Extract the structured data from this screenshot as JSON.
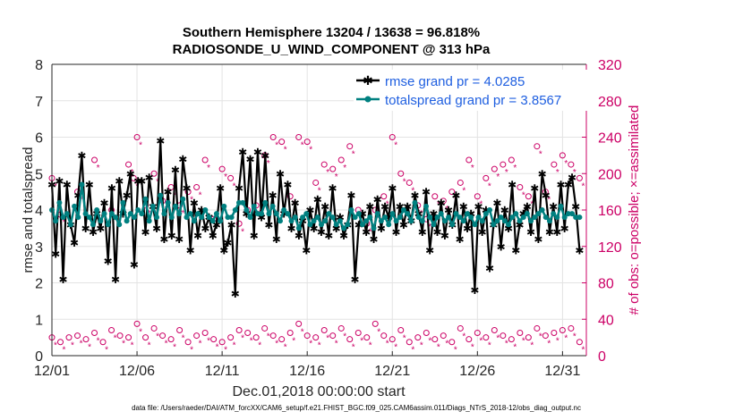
{
  "chart_data": {
    "type": "line",
    "title": "Southern Hemisphere 13204 / 13638 = 96.818%",
    "subtitle": "RADIOSONDE_U_WIND_COMPONENT @ 313 hPa",
    "xlabel": "Dec.01,2018 00:00:00 start",
    "ylabel_left": "rmse and totalspread",
    "ylabel_right": "# of obs: o=possible; ×=assimilated",
    "footer": "data file: /Users/raeder/DAI/ATM_forcXX/CAM6_setup/f.e21.FHIST_BGC.f09_025.CAM6assim.011/Diags_NTrS_2018-12/obs_diag_output.nc",
    "x_range": [
      0,
      31.4
    ],
    "ylim_left": [
      0,
      8
    ],
    "ylim_right": [
      0,
      320
    ],
    "y_ticks_left": [
      "0",
      "1",
      "2",
      "3",
      "4",
      "5",
      "6",
      "7",
      "8"
    ],
    "y_ticks_right": [
      "0",
      "40",
      "80",
      "120",
      "160",
      "200",
      "240",
      "280",
      "320"
    ],
    "x_ticks": [
      {
        "pos": 0,
        "label": "12/01"
      },
      {
        "pos": 5,
        "label": "12/06"
      },
      {
        "pos": 10,
        "label": "12/11"
      },
      {
        "pos": 15,
        "label": "12/16"
      },
      {
        "pos": 20,
        "label": "12/21"
      },
      {
        "pos": 25,
        "label": "12/26"
      },
      {
        "pos": 30,
        "label": "12/31"
      }
    ],
    "series": [
      {
        "name": "rmse grand pr = 4.0285",
        "axis": "left",
        "color": "#000000",
        "values": [
          4.7,
          2.8,
          4.8,
          2.1,
          4.7,
          3.6,
          3.1,
          4.4,
          5.5,
          3.5,
          4.7,
          3.4,
          3.9,
          3.5,
          4.2,
          2.6,
          4.6,
          2.1,
          4.8,
          3.9,
          4.4,
          5.0,
          2.5,
          4.8,
          4.8,
          3.4,
          4.9,
          4.1,
          3.5,
          5.9,
          3.2,
          4.5,
          3.3,
          5.1,
          3.2,
          5.4,
          4.6,
          2.9,
          4.2,
          3.3,
          4.0,
          3.5,
          3.8,
          3.3,
          3.6,
          4.6,
          2.9,
          3.1,
          3.6,
          1.7,
          4.6,
          5.6,
          3.9,
          5.4,
          3.3,
          5.6,
          3.8,
          5.5,
          3.6,
          4.4,
          3.2,
          5.0,
          3.9,
          4.7,
          3.5,
          4.2,
          3.3,
          3.7,
          2.9,
          4.0,
          3.5,
          4.3,
          3.4,
          4.1,
          3.3,
          4.6,
          3.5,
          3.8,
          3.3,
          3.6,
          4.4,
          2.1,
          3.6,
          3.9,
          3.4,
          4.1,
          3.2,
          4.3,
          3.5,
          4.1,
          3.8,
          4.6,
          3.4,
          4.1,
          3.6,
          4.1,
          3.7,
          4.4,
          3.9,
          3.4,
          4.5,
          2.9,
          3.9,
          3.4,
          4.2,
          3.3,
          4.0,
          3.6,
          4.4,
          3.2,
          4.1,
          3.5,
          3.9,
          1.8,
          4.1,
          3.4,
          4.0,
          2.4,
          3.6,
          4.2,
          3.0,
          4.0,
          3.5,
          4.7,
          2.9,
          3.6,
          3.9,
          4.1,
          3.4,
          4.6,
          3.2,
          5.0,
          4.4,
          3.4,
          4.1,
          3.4,
          4.7,
          3.5,
          4.7,
          4.9,
          4.1,
          2.9
        ]
      },
      {
        "name": "totalspread grand pr = 3.8567",
        "axis": "left",
        "color": "#008080",
        "values": [
          4.0,
          3.7,
          4.2,
          3.8,
          3.9,
          3.6,
          4.1,
          3.8,
          4.7,
          3.9,
          3.8,
          3.6,
          4.0,
          3.7,
          3.9,
          3.6,
          3.9,
          3.8,
          3.6,
          4.2,
          3.7,
          3.9,
          3.8,
          4.0,
          3.9,
          4.3,
          3.7,
          4.1,
          3.8,
          4.4,
          3.9,
          4.2,
          3.8,
          4.1,
          3.9,
          4.3,
          3.8,
          3.9,
          3.7,
          3.9,
          3.8,
          4.0,
          3.8,
          3.7,
          3.9,
          3.7,
          4.1,
          3.8,
          3.8,
          4.0,
          4.2,
          4.2,
          4.0,
          3.8,
          4.1,
          3.9,
          3.9,
          4.2,
          3.9,
          4.1,
          3.9,
          3.7,
          4.0,
          3.9,
          3.7,
          3.8,
          3.5,
          3.8,
          3.9,
          3.6,
          3.7,
          3.8,
          3.6,
          3.7,
          3.9,
          3.8,
          3.6,
          3.7,
          3.5,
          3.6,
          4.0,
          3.8,
          3.9,
          3.6,
          3.7,
          3.8,
          3.5,
          3.9,
          3.7,
          3.8,
          3.6,
          3.9,
          3.7,
          3.8,
          4.0,
          3.9,
          3.7,
          4.2,
          3.8,
          3.7,
          4.1,
          3.8,
          3.6,
          3.8,
          3.9,
          3.7,
          3.8,
          3.6,
          3.9,
          3.8,
          3.7,
          3.9,
          3.8,
          3.6,
          3.8,
          3.7,
          3.9,
          4.0,
          3.6,
          3.7,
          3.8,
          3.7,
          3.6,
          3.8,
          3.9,
          3.7,
          3.8,
          3.9,
          3.7,
          3.8,
          3.9,
          4.0,
          3.8,
          3.7,
          3.9,
          3.8,
          4.1,
          3.8,
          3.9,
          3.9,
          3.8,
          3.8
        ]
      },
      {
        "name": "obs possible / assimilated (upper)",
        "axis": "right",
        "color": "#cc0066",
        "points": [
          [
            0,
            195
          ],
          [
            0.5,
            155
          ],
          [
            1.5,
            180
          ],
          [
            2.5,
            215
          ],
          [
            3.5,
            160
          ],
          [
            4.5,
            210
          ],
          [
            4.8,
            195
          ],
          [
            5.0,
            240
          ],
          [
            5.5,
            165
          ],
          [
            6.0,
            200
          ],
          [
            6.5,
            170
          ],
          [
            7.0,
            185
          ],
          [
            7.5,
            165
          ],
          [
            8.0,
            180
          ],
          [
            8.5,
            185
          ],
          [
            9.0,
            215
          ],
          [
            9.5,
            150
          ],
          [
            10.0,
            205
          ],
          [
            10.5,
            195
          ],
          [
            11.0,
            145
          ],
          [
            11.5,
            160
          ],
          [
            12.0,
            165
          ],
          [
            12.5,
            220
          ],
          [
            13.0,
            240
          ],
          [
            13.5,
            235
          ],
          [
            14.0,
            175
          ],
          [
            14.5,
            240
          ],
          [
            15.0,
            235
          ],
          [
            15.5,
            190
          ],
          [
            16.0,
            210
          ],
          [
            16.5,
            205
          ],
          [
            17.0,
            215
          ],
          [
            17.5,
            230
          ],
          [
            18.0,
            160
          ],
          [
            18.5,
            145
          ],
          [
            19.0,
            160
          ],
          [
            19.5,
            175
          ],
          [
            20.0,
            240
          ],
          [
            20.5,
            200
          ],
          [
            21.0,
            190
          ],
          [
            21.5,
            165
          ],
          [
            22.0,
            150
          ],
          [
            22.5,
            175
          ],
          [
            23.0,
            170
          ],
          [
            23.5,
            180
          ],
          [
            24.0,
            190
          ],
          [
            24.5,
            215
          ],
          [
            25.0,
            175
          ],
          [
            25.5,
            195
          ],
          [
            26.0,
            205
          ],
          [
            26.5,
            210
          ],
          [
            27.0,
            215
          ],
          [
            27.5,
            185
          ],
          [
            28.0,
            175
          ],
          [
            28.5,
            230
          ],
          [
            29.0,
            180
          ],
          [
            29.5,
            210
          ],
          [
            30.0,
            220
          ],
          [
            30.5,
            210
          ],
          [
            31.0,
            195
          ]
        ]
      },
      {
        "name": "obs possible / assimilated (lower)",
        "axis": "right",
        "color": "#cc0066",
        "points": [
          [
            0,
            20
          ],
          [
            0.5,
            15
          ],
          [
            1,
            20
          ],
          [
            1.5,
            22
          ],
          [
            2,
            18
          ],
          [
            2.5,
            25
          ],
          [
            3,
            15
          ],
          [
            3.5,
            28
          ],
          [
            4,
            22
          ],
          [
            4.5,
            20
          ],
          [
            5,
            35
          ],
          [
            5.5,
            20
          ],
          [
            6,
            30
          ],
          [
            6.5,
            22
          ],
          [
            7,
            18
          ],
          [
            7.5,
            28
          ],
          [
            8,
            15
          ],
          [
            8.5,
            22
          ],
          [
            9,
            25
          ],
          [
            9.5,
            18
          ],
          [
            10,
            15
          ],
          [
            10.5,
            20
          ],
          [
            11,
            28
          ],
          [
            11.5,
            25
          ],
          [
            12,
            20
          ],
          [
            12.5,
            30
          ],
          [
            13,
            22
          ],
          [
            13.5,
            18
          ],
          [
            14,
            25
          ],
          [
            14.5,
            35
          ],
          [
            15,
            22
          ],
          [
            15.5,
            20
          ],
          [
            16,
            28
          ],
          [
            16.5,
            22
          ],
          [
            17,
            30
          ],
          [
            17.5,
            18
          ],
          [
            18,
            25
          ],
          [
            18.5,
            20
          ],
          [
            19,
            35
          ],
          [
            19.5,
            22
          ],
          [
            20,
            18
          ],
          [
            20.5,
            28
          ],
          [
            21,
            15
          ],
          [
            21.5,
            20
          ],
          [
            22,
            25
          ],
          [
            22.5,
            18
          ],
          [
            23,
            22
          ],
          [
            23.5,
            15
          ],
          [
            24,
            30
          ],
          [
            24.5,
            18
          ],
          [
            25,
            25
          ],
          [
            25.5,
            20
          ],
          [
            26,
            28
          ],
          [
            26.5,
            22
          ],
          [
            27,
            18
          ],
          [
            27.5,
            25
          ],
          [
            28,
            20
          ],
          [
            28.5,
            30
          ],
          [
            29,
            22
          ],
          [
            29.5,
            25
          ],
          [
            30,
            28
          ],
          [
            30.5,
            30
          ],
          [
            31,
            15
          ]
        ]
      }
    ],
    "legend": [
      "rmse grand pr = 4.0285",
      "totalspread grand pr = 3.8567"
    ]
  }
}
